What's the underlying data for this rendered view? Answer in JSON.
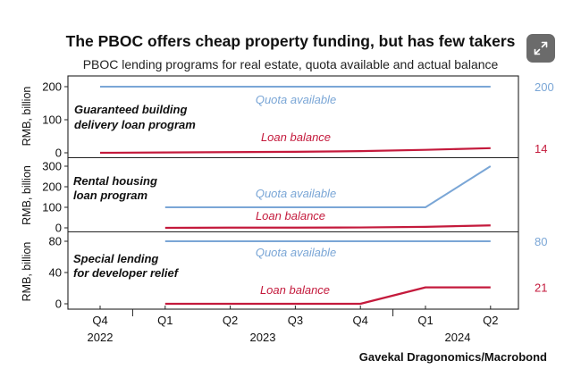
{
  "title": "The PBOC offers cheap property funding, but has few takers",
  "subtitle": "PBOC lending programs for real estate, quota available and actual balance",
  "source": "Gavekal Dragonomics/Macrobond",
  "icons": {
    "expand": "expand-icon"
  },
  "colors": {
    "quota": "#7aa6d6",
    "balance": "#c41a3c",
    "axis": "#222222"
  },
  "chart_data": {
    "type": "line",
    "x_axis": {
      "quarters": [
        "Q4",
        "Q1",
        "Q2",
        "Q3",
        "Q4",
        "Q1",
        "Q2"
      ],
      "years": [
        "2022",
        "2023",
        "2024"
      ],
      "range": [
        "2022-Q3.5",
        "2024-Q2.5"
      ]
    },
    "panels": [
      {
        "label": "Guaranteed building\ndelivery loan program",
        "ylabel": "RMB, billion",
        "ylim": [
          0,
          220
        ],
        "yticks": [
          0,
          100,
          200
        ],
        "series": [
          {
            "name": "Quota available",
            "x": [
              0,
              6
            ],
            "values": [
              200,
              200
            ],
            "last_value_label": "200"
          },
          {
            "name": "Loan balance",
            "x": [
              0,
              1,
              2,
              3,
              4,
              5,
              6
            ],
            "values": [
              0,
              1,
              2,
              3,
              5,
              9,
              14
            ],
            "last_value_label": "14"
          }
        ]
      },
      {
        "label": "Rental housing\nloan program",
        "ylabel": "RMB, billion",
        "ylim": [
          0,
          320
        ],
        "yticks": [
          0,
          100,
          200,
          300
        ],
        "series": [
          {
            "name": "Quota available",
            "x": [
              1,
              5,
              6
            ],
            "values": [
              100,
              100,
              300
            ]
          },
          {
            "name": "Loan balance",
            "x": [
              1,
              2,
              3,
              4,
              5,
              6
            ],
            "values": [
              0,
              1,
              1,
              2,
              5,
              12
            ]
          }
        ]
      },
      {
        "label": "Special lending\nfor developer relief",
        "ylabel": "RMB, billion",
        "ylim": [
          0,
          84
        ],
        "yticks": [
          0,
          40,
          80
        ],
        "series": [
          {
            "name": "Quota available",
            "x": [
              1,
              6
            ],
            "values": [
              80,
              80
            ],
            "last_value_label": "80"
          },
          {
            "name": "Loan balance",
            "x": [
              1,
              2,
              3,
              4,
              5,
              6
            ],
            "values": [
              0,
              0,
              0,
              0,
              21,
              21
            ],
            "last_value_label": "21"
          }
        ]
      }
    ]
  }
}
